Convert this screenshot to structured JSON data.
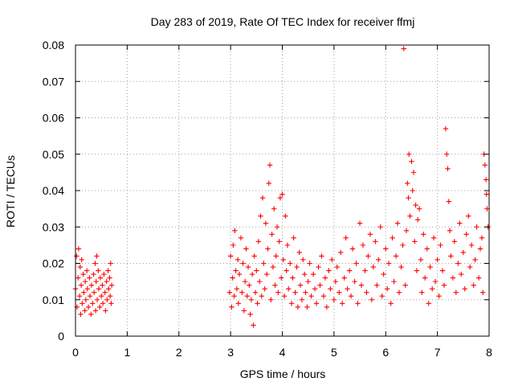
{
  "chart_data": {
    "type": "scatter",
    "title": "Day 283 of 2019, Rate Of TEC Index for receiver ffmj",
    "xlabel": "GPS time / hours",
    "ylabel": "ROTI / TECUs",
    "xlim": [
      0,
      8
    ],
    "ylim": [
      0,
      0.08
    ],
    "xticks": [
      0,
      1,
      2,
      3,
      4,
      5,
      6,
      7,
      8
    ],
    "yticks": [
      0,
      0.01,
      0.02,
      0.03,
      0.04,
      0.05,
      0.06,
      0.07,
      0.08
    ],
    "xtick_labels": [
      "0",
      "1",
      "2",
      "3",
      "4",
      "5",
      "6",
      "7",
      "8"
    ],
    "ytick_labels": [
      "0",
      "0.01",
      "0.02",
      "0.03",
      "0.04",
      "0.05",
      "0.06",
      "0.07",
      "0.08"
    ],
    "grid": true,
    "marker": "plus",
    "color": "#ff0000",
    "series": [
      {
        "name": "ROTI",
        "points": [
          [
            0.0,
            0.013
          ],
          [
            0.02,
            0.022
          ],
          [
            0.03,
            0.008
          ],
          [
            0.05,
            0.016
          ],
          [
            0.06,
            0.024
          ],
          [
            0.08,
            0.011
          ],
          [
            0.09,
            0.019
          ],
          [
            0.1,
            0.006
          ],
          [
            0.11,
            0.014
          ],
          [
            0.12,
            0.021
          ],
          [
            0.13,
            0.009
          ],
          [
            0.15,
            0.017
          ],
          [
            0.16,
            0.012
          ],
          [
            0.18,
            0.007
          ],
          [
            0.19,
            0.015
          ],
          [
            0.2,
            0.01
          ],
          [
            0.22,
            0.018
          ],
          [
            0.23,
            0.013
          ],
          [
            0.25,
            0.008
          ],
          [
            0.27,
            0.016
          ],
          [
            0.28,
            0.011
          ],
          [
            0.3,
            0.006
          ],
          [
            0.31,
            0.014
          ],
          [
            0.33,
            0.009
          ],
          [
            0.35,
            0.017
          ],
          [
            0.36,
            0.012
          ],
          [
            0.38,
            0.02
          ],
          [
            0.39,
            0.007
          ],
          [
            0.4,
            0.015
          ],
          [
            0.41,
            0.022
          ],
          [
            0.42,
            0.01
          ],
          [
            0.44,
            0.018
          ],
          [
            0.45,
            0.013
          ],
          [
            0.47,
            0.008
          ],
          [
            0.48,
            0.016
          ],
          [
            0.5,
            0.011
          ],
          [
            0.52,
            0.014
          ],
          [
            0.53,
            0.009
          ],
          [
            0.55,
            0.017
          ],
          [
            0.57,
            0.012
          ],
          [
            0.58,
            0.007
          ],
          [
            0.6,
            0.015
          ],
          [
            0.61,
            0.01
          ],
          [
            0.63,
            0.018
          ],
          [
            0.64,
            0.013
          ],
          [
            0.66,
            0.016
          ],
          [
            0.67,
            0.011
          ],
          [
            0.68,
            0.02
          ],
          [
            0.69,
            0.009
          ],
          [
            0.7,
            0.014
          ],
          [
            2.98,
            0.012
          ],
          [
            3.0,
            0.022
          ],
          [
            3.02,
            0.008
          ],
          [
            3.04,
            0.016
          ],
          [
            3.05,
            0.025
          ],
          [
            3.07,
            0.011
          ],
          [
            3.08,
            0.029
          ],
          [
            3.1,
            0.018
          ],
          [
            3.12,
            0.013
          ],
          [
            3.14,
            0.021
          ],
          [
            3.15,
            0.009
          ],
          [
            3.17,
            0.017
          ],
          [
            3.2,
            0.027
          ],
          [
            3.22,
            0.012
          ],
          [
            3.24,
            0.02
          ],
          [
            3.26,
            0.007
          ],
          [
            3.28,
            0.015
          ],
          [
            3.3,
            0.024
          ],
          [
            3.32,
            0.011
          ],
          [
            3.34,
            0.019
          ],
          [
            3.36,
            0.014
          ],
          [
            3.38,
            0.006
          ],
          [
            3.4,
            0.01
          ],
          [
            3.42,
            0.017
          ],
          [
            3.44,
            0.003
          ],
          [
            3.46,
            0.022
          ],
          [
            3.48,
            0.012
          ],
          [
            3.5,
            0.018
          ],
          [
            3.52,
            0.009
          ],
          [
            3.54,
            0.026
          ],
          [
            3.56,
            0.015
          ],
          [
            3.58,
            0.033
          ],
          [
            3.6,
            0.011
          ],
          [
            3.62,
            0.038
          ],
          [
            3.64,
            0.02
          ],
          [
            3.66,
            0.013
          ],
          [
            3.68,
            0.031
          ],
          [
            3.7,
            0.017
          ],
          [
            3.72,
            0.024
          ],
          [
            3.74,
            0.042
          ],
          [
            3.76,
            0.047
          ],
          [
            3.78,
            0.01
          ],
          [
            3.8,
            0.028
          ],
          [
            3.82,
            0.019
          ],
          [
            3.84,
            0.035
          ],
          [
            3.86,
            0.014
          ],
          [
            3.88,
            0.022
          ],
          [
            3.9,
            0.03
          ],
          [
            3.92,
            0.012
          ],
          [
            3.94,
            0.026
          ],
          [
            3.96,
            0.038
          ],
          [
            3.98,
            0.016
          ],
          [
            4.0,
            0.039
          ],
          [
            4.02,
            0.021
          ],
          [
            4.04,
            0.011
          ],
          [
            4.06,
            0.033
          ],
          [
            4.08,
            0.018
          ],
          [
            4.1,
            0.025
          ],
          [
            4.12,
            0.013
          ],
          [
            4.15,
            0.02
          ],
          [
            4.18,
            0.009
          ],
          [
            4.2,
            0.016
          ],
          [
            4.22,
            0.027
          ],
          [
            4.25,
            0.012
          ],
          [
            4.28,
            0.019
          ],
          [
            4.3,
            0.008
          ],
          [
            4.33,
            0.023
          ],
          [
            4.35,
            0.014
          ],
          [
            4.38,
            0.01
          ],
          [
            4.4,
            0.021
          ],
          [
            4.43,
            0.017
          ],
          [
            4.45,
            0.012
          ],
          [
            4.48,
            0.008
          ],
          [
            4.5,
            0.015
          ],
          [
            4.53,
            0.02
          ],
          [
            4.56,
            0.011
          ],
          [
            4.6,
            0.017
          ],
          [
            4.63,
            0.013
          ],
          [
            4.66,
            0.009
          ],
          [
            4.7,
            0.019
          ],
          [
            4.73,
            0.014
          ],
          [
            4.76,
            0.022
          ],
          [
            4.8,
            0.011
          ],
          [
            4.83,
            0.016
          ],
          [
            4.86,
            0.008
          ],
          [
            4.9,
            0.018
          ],
          [
            4.93,
            0.013
          ],
          [
            4.96,
            0.021
          ],
          [
            5.0,
            0.01
          ],
          [
            5.03,
            0.015
          ],
          [
            5.06,
            0.019
          ],
          [
            5.1,
            0.012
          ],
          [
            5.13,
            0.023
          ],
          [
            5.16,
            0.009
          ],
          [
            5.2,
            0.016
          ],
          [
            5.23,
            0.027
          ],
          [
            5.26,
            0.013
          ],
          [
            5.3,
            0.018
          ],
          [
            5.33,
            0.011
          ],
          [
            5.36,
            0.024
          ],
          [
            5.4,
            0.015
          ],
          [
            5.43,
            0.02
          ],
          [
            5.46,
            0.009
          ],
          [
            5.5,
            0.031
          ],
          [
            5.53,
            0.014
          ],
          [
            5.56,
            0.025
          ],
          [
            5.6,
            0.018
          ],
          [
            5.63,
            0.012
          ],
          [
            5.66,
            0.022
          ],
          [
            5.7,
            0.028
          ],
          [
            5.73,
            0.01
          ],
          [
            5.76,
            0.019
          ],
          [
            5.8,
            0.026
          ],
          [
            5.83,
            0.014
          ],
          [
            5.86,
            0.021
          ],
          [
            5.9,
            0.03
          ],
          [
            5.93,
            0.011
          ],
          [
            5.96,
            0.017
          ],
          [
            6.0,
            0.024
          ],
          [
            6.03,
            0.013
          ],
          [
            6.06,
            0.02
          ],
          [
            6.1,
            0.009
          ],
          [
            6.13,
            0.027
          ],
          [
            6.16,
            0.015
          ],
          [
            6.2,
            0.022
          ],
          [
            6.23,
            0.031
          ],
          [
            6.26,
            0.012
          ],
          [
            6.3,
            0.019
          ],
          [
            6.33,
            0.025
          ],
          [
            6.35,
            0.079
          ],
          [
            6.38,
            0.014
          ],
          [
            6.4,
            0.029
          ],
          [
            6.42,
            0.042
          ],
          [
            6.44,
            0.038
          ],
          [
            6.45,
            0.05
          ],
          [
            6.47,
            0.033
          ],
          [
            6.5,
            0.048
          ],
          [
            6.52,
            0.04
          ],
          [
            6.54,
            0.045
          ],
          [
            6.56,
            0.026
          ],
          [
            6.58,
            0.036
          ],
          [
            6.6,
            0.018
          ],
          [
            6.62,
            0.032
          ],
          [
            6.65,
            0.035
          ],
          [
            6.68,
            0.021
          ],
          [
            6.7,
            0.012
          ],
          [
            6.73,
            0.028
          ],
          [
            6.76,
            0.016
          ],
          [
            6.8,
            0.024
          ],
          [
            6.83,
            0.009
          ],
          [
            6.86,
            0.019
          ],
          [
            6.9,
            0.013
          ],
          [
            6.93,
            0.027
          ],
          [
            6.96,
            0.015
          ],
          [
            7.0,
            0.021
          ],
          [
            7.03,
            0.011
          ],
          [
            7.06,
            0.025
          ],
          [
            7.1,
            0.018
          ],
          [
            7.13,
            0.014
          ],
          [
            7.16,
            0.057
          ],
          [
            7.18,
            0.05
          ],
          [
            7.2,
            0.046
          ],
          [
            7.22,
            0.037
          ],
          [
            7.24,
            0.029
          ],
          [
            7.26,
            0.022
          ],
          [
            7.3,
            0.016
          ],
          [
            7.33,
            0.026
          ],
          [
            7.36,
            0.012
          ],
          [
            7.4,
            0.02
          ],
          [
            7.43,
            0.031
          ],
          [
            7.46,
            0.017
          ],
          [
            7.5,
            0.023
          ],
          [
            7.53,
            0.013
          ],
          [
            7.56,
            0.028
          ],
          [
            7.6,
            0.033
          ],
          [
            7.63,
            0.019
          ],
          [
            7.66,
            0.025
          ],
          [
            7.7,
            0.014
          ],
          [
            7.73,
            0.021
          ],
          [
            7.76,
            0.03
          ],
          [
            7.8,
            0.016
          ],
          [
            7.83,
            0.024
          ],
          [
            7.86,
            0.027
          ],
          [
            7.88,
            0.012
          ],
          [
            7.9,
            0.05
          ],
          [
            7.92,
            0.047
          ],
          [
            7.94,
            0.043
          ],
          [
            7.95,
            0.039
          ],
          [
            7.96,
            0.035
          ],
          [
            7.98,
            0.03
          ]
        ]
      }
    ]
  }
}
